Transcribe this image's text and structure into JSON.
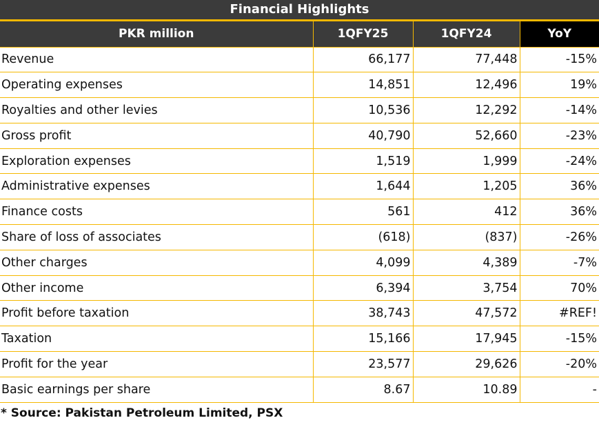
{
  "title": "Financial Highlights",
  "headers": [
    "PKR million",
    "1QFY25",
    "1QFY24",
    "YoY"
  ],
  "rows": [
    {
      "label": "Revenue",
      "q25": "66,177",
      "q24": "77,448",
      "yoy": "-15%"
    },
    {
      "label": "Operating expenses",
      "q25": "14,851",
      "q24": "12,496",
      "yoy": "19%"
    },
    {
      "label": "Royalties and other levies",
      "q25": "10,536",
      "q24": "12,292",
      "yoy": "-14%"
    },
    {
      "label": "Gross profit",
      "q25": "40,790",
      "q24": "52,660",
      "yoy": "-23%"
    },
    {
      "label": "Exploration expenses",
      "q25": "1,519",
      "q24": "1,999",
      "yoy": "-24%"
    },
    {
      "label": "Administrative expenses",
      "q25": "1,644",
      "q24": "1,205",
      "yoy": "36%"
    },
    {
      "label": "Finance costs",
      "q25": "561",
      "q24": "412",
      "yoy": "36%"
    },
    {
      "label": "Share of loss of associates",
      "q25": "(618)",
      "q24": "(837)",
      "yoy": "-26%"
    },
    {
      "label": "Other charges",
      "q25": "4,099",
      "q24": "4,389",
      "yoy": "-7%"
    },
    {
      "label": "Other income",
      "q25": "6,394",
      "q24": "3,754",
      "yoy": "70%"
    },
    {
      "label": "Profit before taxation",
      "q25": "38,743",
      "q24": "47,572",
      "yoy": "#REF!"
    },
    {
      "label": "Taxation",
      "q25": "15,166",
      "q24": "17,945",
      "yoy": "-15%"
    },
    {
      "label": "Profit for the year",
      "q25": "23,577",
      "q24": "29,626",
      "yoy": "-20%"
    },
    {
      "label": "Basic earnings per share",
      "q25": "8.67",
      "q24": "10.89",
      "yoy": "-"
    }
  ],
  "source": "* Source: Pakistan Petroleum Limited, PSX",
  "colors": {
    "header_bg": "#3b3b3b",
    "yoy_header_bg": "#000000",
    "grid_accent": "#f5b800"
  }
}
